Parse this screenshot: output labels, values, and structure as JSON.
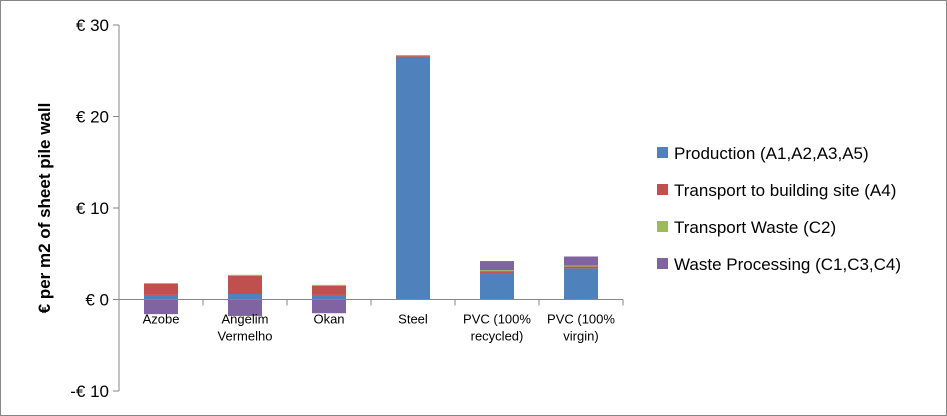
{
  "chart_data": {
    "type": "bar",
    "stacked": true,
    "title": "",
    "xlabel": "",
    "ylabel": "€ per m2 of sheet pile wall",
    "ylim": [
      -10,
      30
    ],
    "yticks": [
      30,
      20,
      10,
      0,
      -10
    ],
    "ytick_labels": [
      "€ 30",
      "€ 20",
      "€ 10",
      "€ 0",
      "-€ 10"
    ],
    "grid": false,
    "legend_position": "right",
    "categories": [
      [
        "Azobe"
      ],
      [
        "Angelim",
        "Vermelho"
      ],
      [
        "Okan"
      ],
      [
        "Steel"
      ],
      [
        "PVC (100%",
        "recycled)"
      ],
      [
        "PVC (100%",
        "virgin)"
      ]
    ],
    "series": [
      {
        "name": "Production (A1,A2,A3,A5)",
        "color": "#4f81bd",
        "values": [
          0.5,
          0.6,
          0.5,
          26.4,
          2.9,
          3.4
        ]
      },
      {
        "name": "Transport to building site (A4)",
        "color": "#c0504d",
        "values": [
          1.2,
          2.0,
          1.0,
          0.2,
          0.2,
          0.2
        ]
      },
      {
        "name": "Transport Waste (C2)",
        "color": "#9bbb59",
        "values": [
          0.1,
          0.1,
          0.1,
          0.05,
          0.1,
          0.1
        ]
      },
      {
        "name": "Waste Processing (C1,C3,C4)",
        "color": "#8064a2",
        "values": [
          -1.6,
          -1.8,
          -1.5,
          0.05,
          1.0,
          1.0
        ]
      }
    ]
  }
}
